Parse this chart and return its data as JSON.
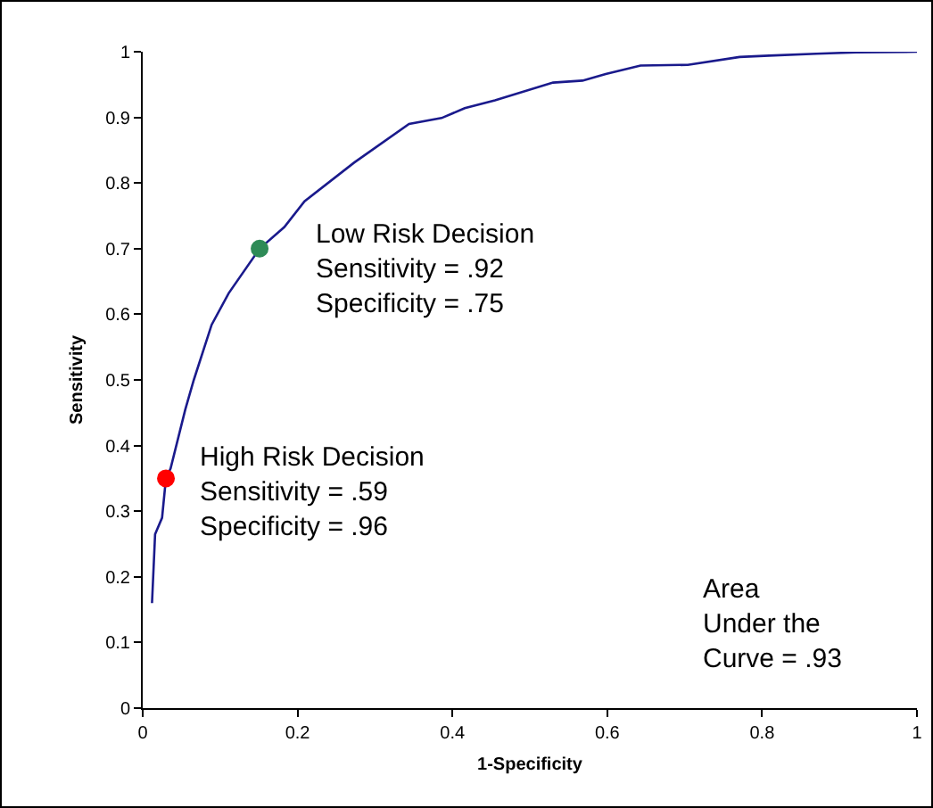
{
  "chart_data": {
    "type": "line",
    "xlabel": "1-Specificity",
    "ylabel": "Sensitivity",
    "xlim": [
      0,
      1
    ],
    "xticks": [
      0,
      0.2,
      0.4,
      0.6,
      0.8,
      1
    ],
    "ylim": [
      0,
      1
    ],
    "yticks": [
      0,
      0.1,
      0.2,
      0.3,
      0.4,
      0.5,
      0.6,
      0.7,
      0.8,
      0.9,
      1
    ],
    "grid": false,
    "line_style": "solid",
    "series": [
      {
        "marker": "none",
        "color": "#1a1a8c",
        "x": [
          0.012,
          0.016,
          0.025,
          0.03,
          0.036,
          0.055,
          0.066,
          0.089,
          0.111,
          0.151,
          0.183,
          0.209,
          0.273,
          0.344,
          0.386,
          0.416,
          0.455,
          0.53,
          0.568,
          0.598,
          0.643,
          0.704,
          0.771,
          0.809,
          0.87,
          0.922,
          1.0
        ],
        "values": [
          0.16,
          0.265,
          0.29,
          0.35,
          0.365,
          0.455,
          0.5,
          0.584,
          0.632,
          0.7,
          0.733,
          0.772,
          0.831,
          0.89,
          0.899,
          0.914,
          0.926,
          0.953,
          0.956,
          0.966,
          0.979,
          0.98,
          0.992,
          0.994,
          0.997,
          0.999,
          1.0
        ]
      },
      {
        "type": "scatter",
        "marker": "circle",
        "color": "#ff0000",
        "x": [
          0.03
        ],
        "values": [
          0.35
        ]
      },
      {
        "type": "scatter",
        "marker": "circle",
        "color": "#2e8b57",
        "x": [
          0.151
        ],
        "values": [
          0.7
        ]
      }
    ],
    "annotations": [
      "Low Risk Decision\nSensitivity = .92\nSpecificity = .75",
      "High Risk Decision\nSensitivity = .59\nSpecificity = .96",
      "Area\nUnder the\nCurve = .93"
    ]
  }
}
